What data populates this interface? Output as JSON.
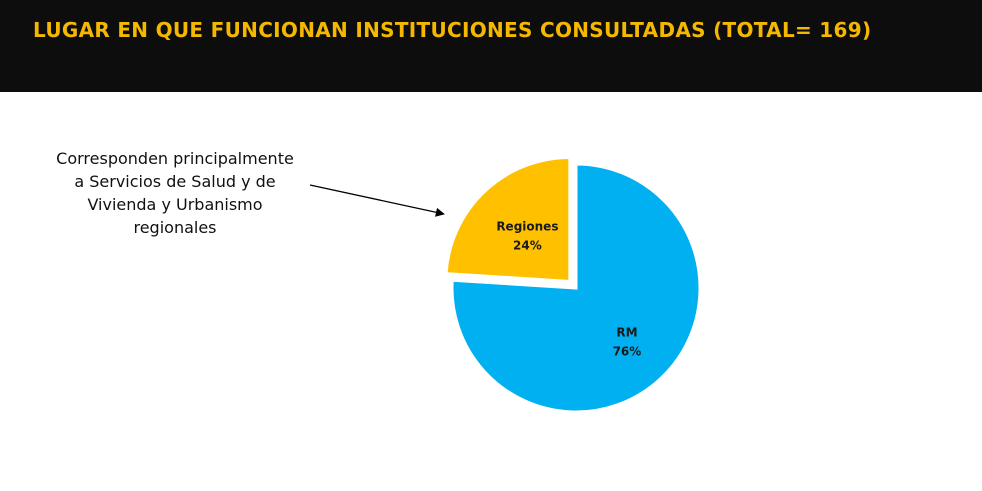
{
  "chart_data": {
    "type": "pie",
    "title": "LUGAR EN QUE FUNCIONAN INSTITUCIONES CONSULTADAS (TOTAL= 169)",
    "annotation": "Corresponden principalmente a Servicios de Salud y de Vivienda y Urbanismo regionales",
    "categories": [
      "RM",
      "Regiones"
    ],
    "values": [
      76,
      24
    ],
    "value_labels": [
      "76%",
      "24%"
    ],
    "colors": [
      "#00b0f0",
      "#ffc000"
    ]
  }
}
